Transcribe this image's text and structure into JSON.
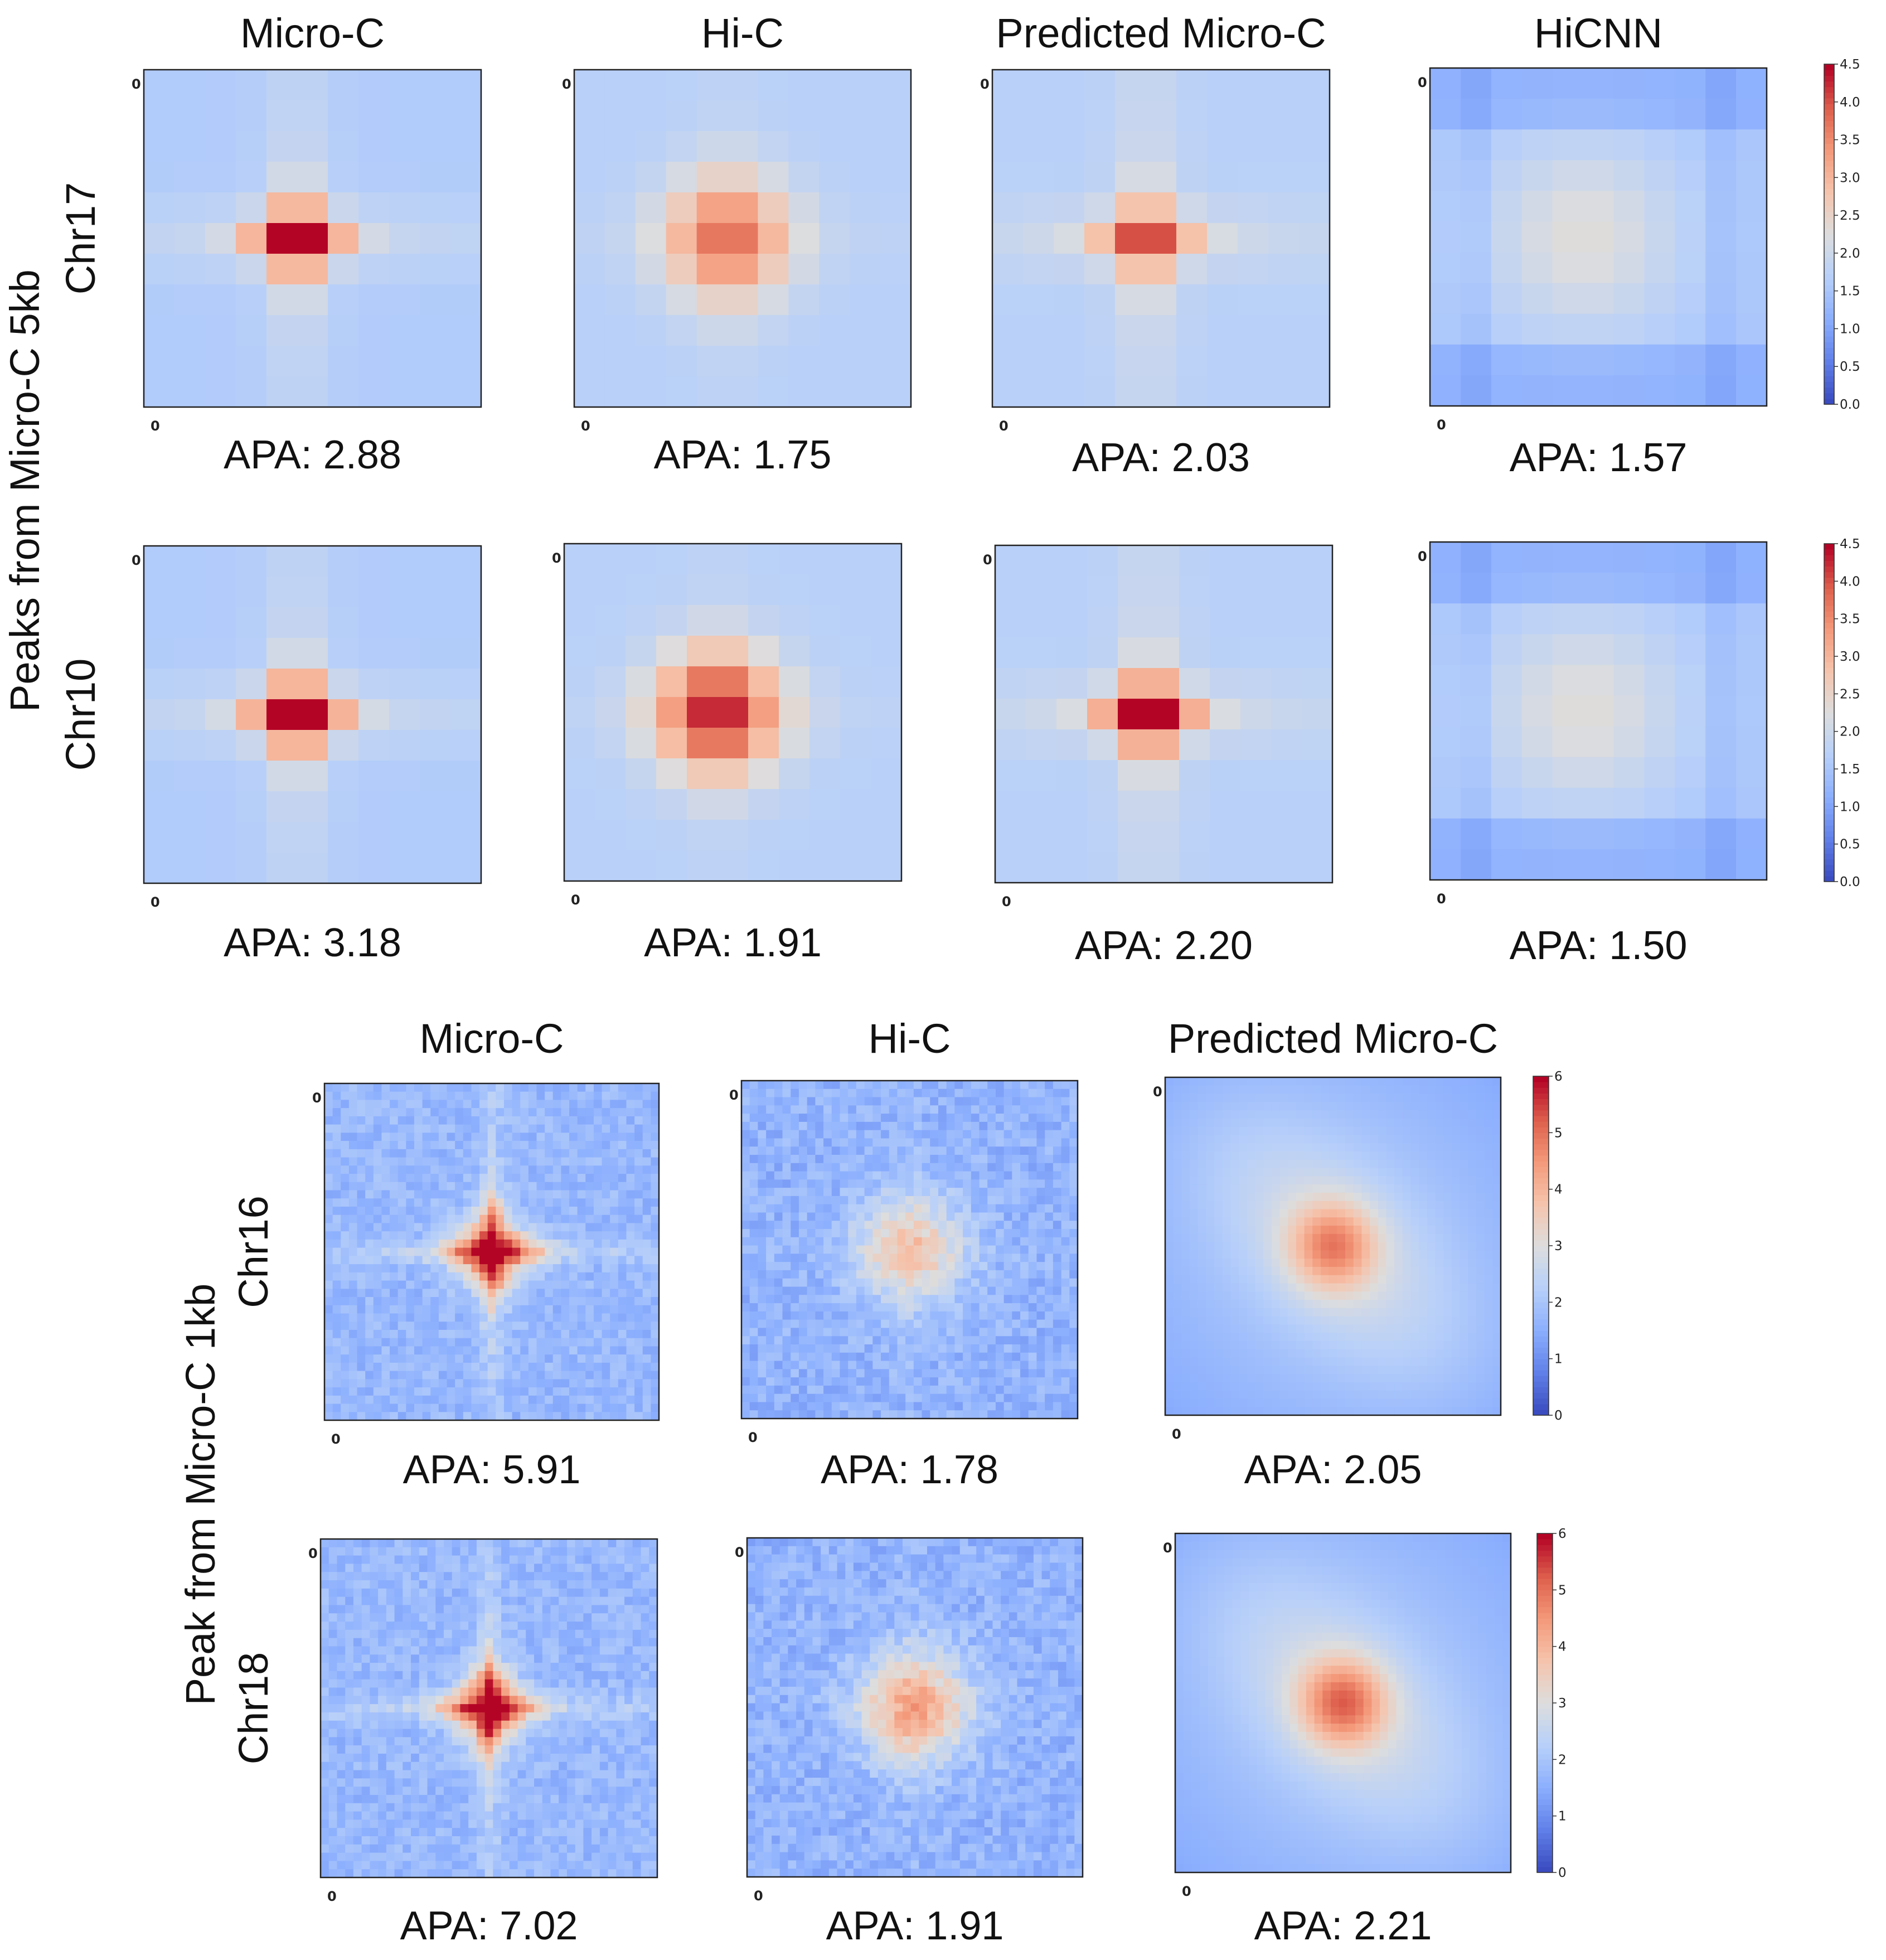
{
  "figure": {
    "panels": [
      {
        "row_group_label": "Peaks from Micro-C  5kb",
        "grid": 11,
        "colorbar": {
          "min": 0.0,
          "max": 4.5,
          "ticks": [
            "0.0",
            "0.5",
            "1.0",
            "1.5",
            "2.0",
            "2.5",
            "3.0",
            "3.5",
            "4.0",
            "4.5"
          ],
          "colormap": "coolwarm"
        },
        "columns": [
          "Micro-C",
          "Hi-C",
          "Predicted Micro-C",
          "HiCNN"
        ],
        "rows": [
          {
            "label": "Chr17",
            "apa": [
              "APA: 2.88",
              "APA: 1.75",
              "APA: 2.03",
              "APA: 1.57"
            ]
          },
          {
            "label": "Chr10",
            "apa": [
              "APA: 3.18",
              "APA: 1.91",
              "APA: 2.20",
              "APA: 1.50"
            ]
          }
        ]
      },
      {
        "row_group_label": "Peak from Micro-C 1kb",
        "grid": 41,
        "colorbar": {
          "min": 0,
          "max": 6,
          "ticks": [
            "0",
            "1",
            "2",
            "3",
            "4",
            "5",
            "6"
          ],
          "colormap": "coolwarm"
        },
        "columns": [
          "Micro-C",
          "Hi-C",
          "Predicted Micro-C"
        ],
        "rows": [
          {
            "label": "Chr16",
            "apa": [
              "APA: 5.91",
              "APA: 1.78",
              "APA: 2.05"
            ]
          },
          {
            "label": "Chr18",
            "apa": [
              "APA: 7.02",
              "APA: 1.91",
              "APA: 2.21"
            ]
          }
        ]
      }
    ],
    "axis_zero_label": "0"
  },
  "chart_data": [
    {
      "type": "heatmap",
      "title": "Peaks from Micro-C 5kb — Chr17",
      "panels": [
        "Micro-C",
        "Hi-C",
        "Predicted Micro-C",
        "HiCNN"
      ],
      "center_value": [
        4.4,
        3.6,
        3.8,
        2.3
      ],
      "background_value": [
        1.6,
        1.7,
        1.7,
        1.5
      ],
      "apa": [
        2.88,
        1.75,
        2.03,
        1.57
      ],
      "color_range": [
        0.0,
        4.5
      ]
    },
    {
      "type": "heatmap",
      "title": "Peaks from Micro-C 5kb — Chr10",
      "panels": [
        "Micro-C",
        "Hi-C",
        "Predicted Micro-C",
        "HiCNN"
      ],
      "center_value": [
        4.5,
        4.2,
        4.5,
        2.3
      ],
      "background_value": [
        1.6,
        1.7,
        1.7,
        1.5
      ],
      "apa": [
        3.18,
        1.91,
        2.2,
        1.5
      ],
      "color_range": [
        0.0,
        4.5
      ]
    },
    {
      "type": "heatmap",
      "title": "Peak from Micro-C 1kb — Chr16",
      "panels": [
        "Micro-C",
        "Hi-C",
        "Predicted Micro-C"
      ],
      "center_value": [
        6.0,
        3.6,
        4.1
      ],
      "background_value": [
        1.7,
        1.6,
        1.9
      ],
      "apa": [
        5.91,
        1.78,
        2.05
      ],
      "color_range": [
        0,
        6
      ]
    },
    {
      "type": "heatmap",
      "title": "Peak from Micro-C 1kb — Chr18",
      "panels": [
        "Micro-C",
        "Hi-C",
        "Predicted Micro-C"
      ],
      "center_value": [
        6.0,
        4.2,
        4.4
      ],
      "background_value": [
        1.7,
        1.6,
        1.9
      ],
      "apa": [
        7.02,
        1.91,
        2.21
      ],
      "color_range": [
        0,
        6
      ]
    }
  ]
}
